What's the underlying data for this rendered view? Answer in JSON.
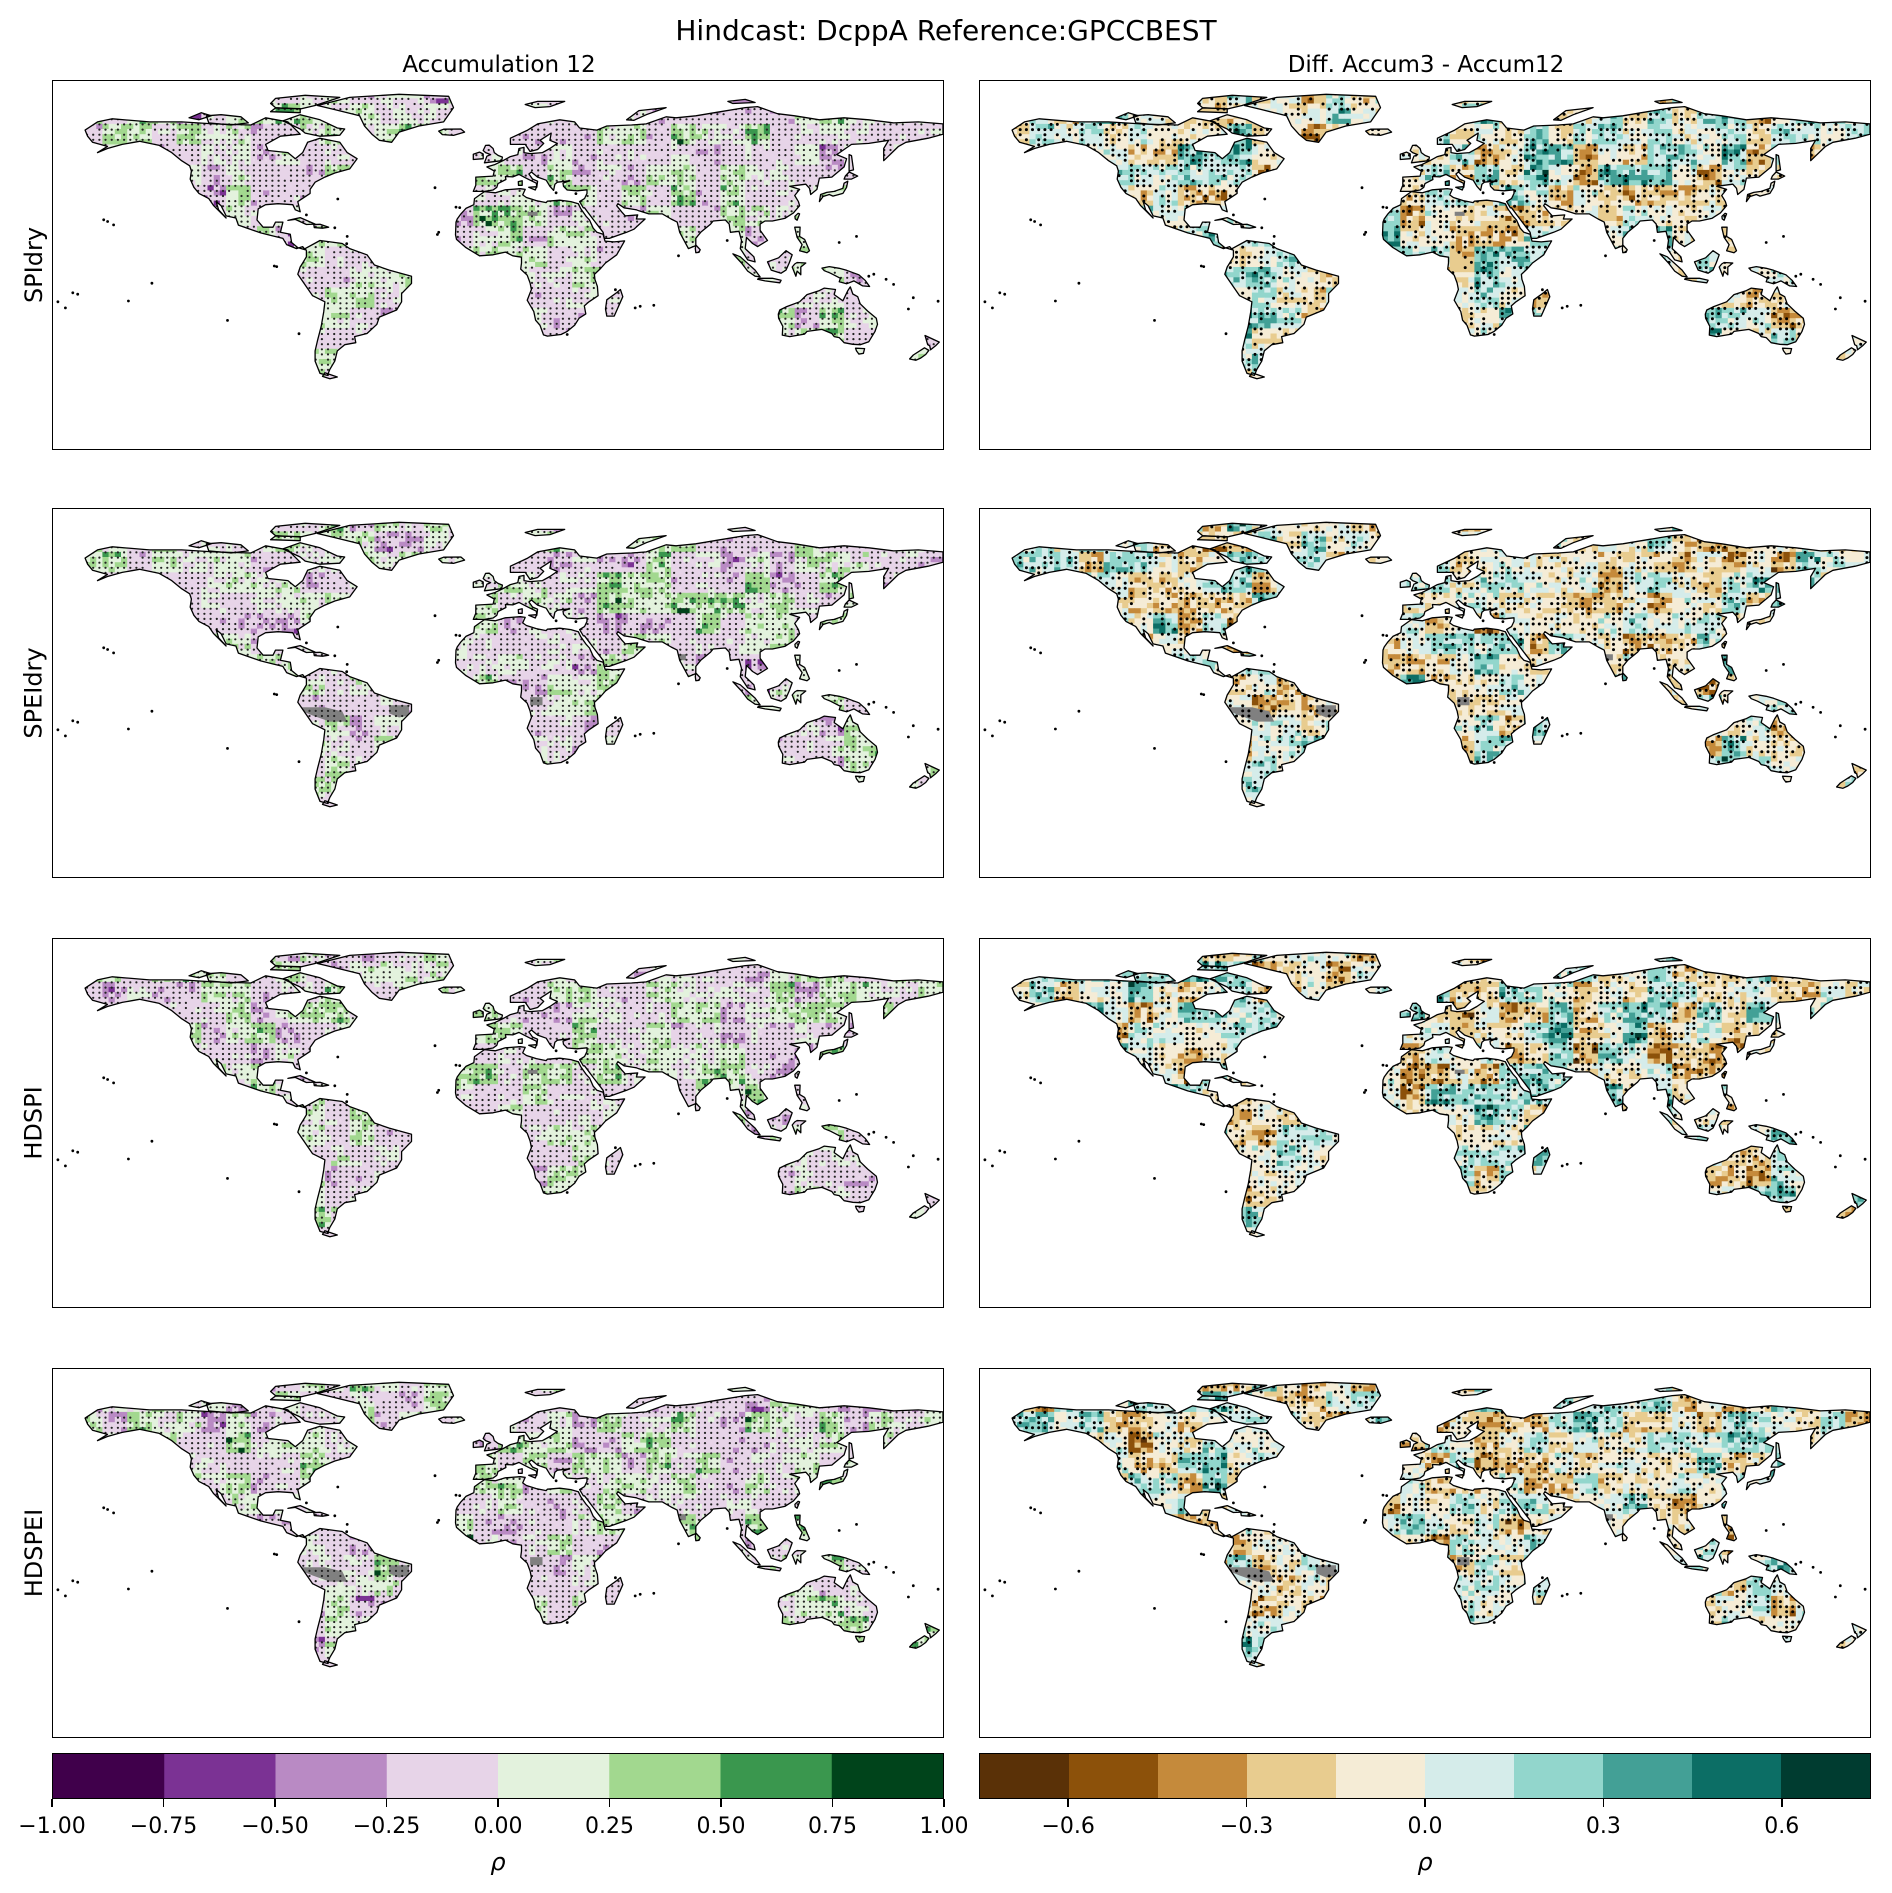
{
  "figure": {
    "title": "Hindcast: DcppA Reference:GPCCBEST",
    "columns": [
      "Accumulation 12",
      "Diff. Accum3 - Accum12"
    ],
    "rows": [
      "SPIdry",
      "SPEIdry",
      "HDSPI",
      "HDSPEI"
    ]
  },
  "colorbars": {
    "left": {
      "label": "ρ",
      "ticks": [
        "−1.00",
        "−0.75",
        "−0.50",
        "−0.25",
        "0.00",
        "0.25",
        "0.50",
        "0.75",
        "1.00"
      ],
      "colors": [
        "#40004b",
        "#7b3294",
        "#b98ac4",
        "#e7d4e8",
        "#e3f2dd",
        "#a2d88f",
        "#3a974e",
        "#00441b"
      ]
    },
    "right": {
      "label": "ρ",
      "ticks": [
        "−0.6",
        "−0.3",
        "0.0",
        "0.3",
        "0.6"
      ],
      "colors": [
        "#5a3107",
        "#8c510a",
        "#c58a3b",
        "#e8cc8f",
        "#f5ecd6",
        "#d5ecea",
        "#92d6cc",
        "#43a096",
        "#0c6e65",
        "#003c30"
      ]
    }
  },
  "map_colors": {
    "ocean": "#ffffff",
    "coast": "#000000",
    "missing": "#808080"
  }
}
